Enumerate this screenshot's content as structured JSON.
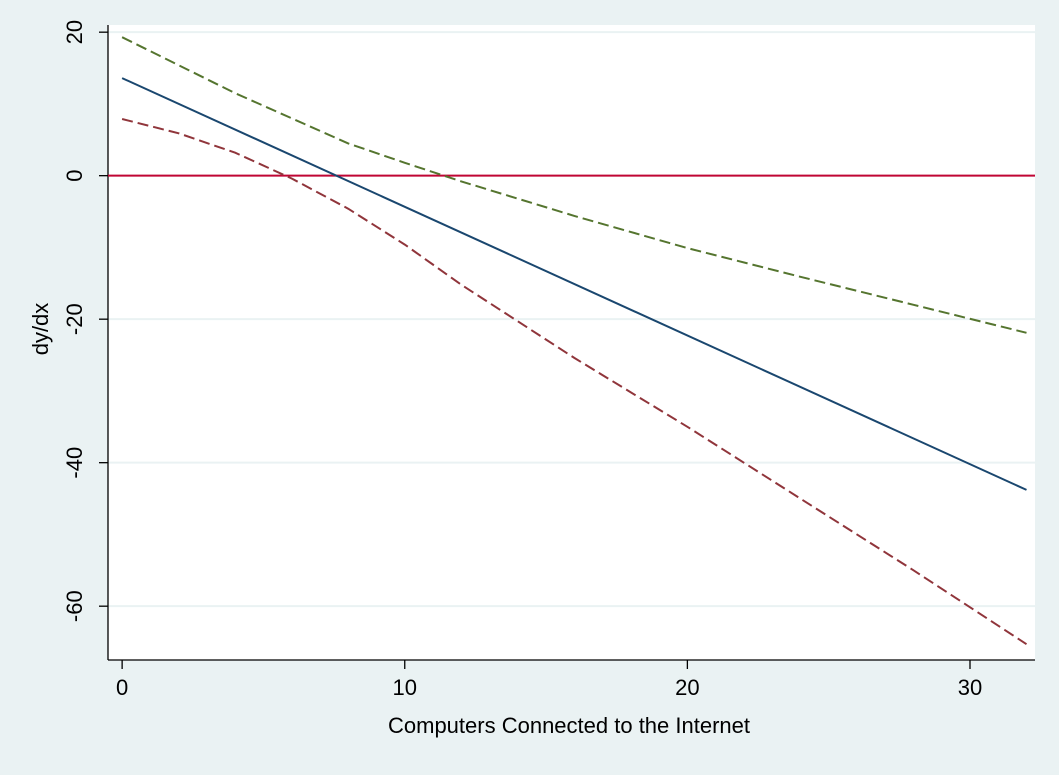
{
  "chart_data": {
    "type": "line",
    "title": "",
    "xlabel": "Computers Connected to the Internet",
    "ylabel": "dy/dx",
    "xlim": [
      -0.5,
      32.3
    ],
    "ylim": [
      -67.5,
      21
    ],
    "x_ticks": [
      0,
      10,
      20,
      30
    ],
    "y_ticks": [
      20,
      0,
      -20,
      -40,
      -60
    ],
    "grid": true,
    "legend": "none",
    "reference_line": {
      "y": 0,
      "color": "#c10534"
    },
    "series": [
      {
        "role": "estimate",
        "color": "#1a476f",
        "dash": "solid",
        "x": [
          0,
          32
        ],
        "y": [
          13.6,
          -43.8
        ]
      },
      {
        "role": "upper-bound",
        "color": "#55752f",
        "dash": "dashed",
        "x": [
          0,
          4,
          8,
          10,
          12,
          16,
          20,
          24,
          28,
          32
        ],
        "y": [
          19.3,
          11.5,
          4.5,
          1.8,
          -0.8,
          -5.6,
          -10.1,
          -14.1,
          -18.0,
          -21.9
        ]
      },
      {
        "role": "lower-bound",
        "color": "#90353b",
        "dash": "dashed",
        "x": [
          0,
          2,
          4,
          6,
          8,
          10,
          12,
          16,
          20,
          24,
          28,
          32
        ],
        "y": [
          7.9,
          5.9,
          3.2,
          -0.4,
          -4.6,
          -9.6,
          -15.2,
          -25.4,
          -35.0,
          -45.0,
          -55.0,
          -65.3
        ]
      }
    ]
  }
}
